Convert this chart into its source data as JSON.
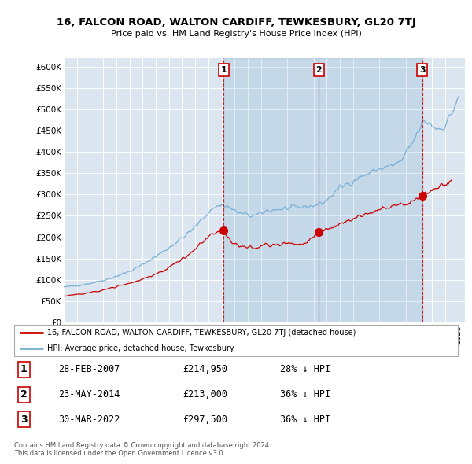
{
  "title": "16, FALCON ROAD, WALTON CARDIFF, TEWKESBURY, GL20 7TJ",
  "subtitle": "Price paid vs. HM Land Registry's House Price Index (HPI)",
  "ylabel_ticks": [
    0,
    50000,
    100000,
    150000,
    200000,
    250000,
    300000,
    350000,
    400000,
    450000,
    500000,
    550000,
    600000
  ],
  "ylabel_labels": [
    "£0",
    "£50K",
    "£100K",
    "£150K",
    "£200K",
    "£250K",
    "£300K",
    "£350K",
    "£400K",
    "£450K",
    "£500K",
    "£550K",
    "£600K"
  ],
  "ylim": [
    0,
    620000
  ],
  "xlim_start": 1995.0,
  "xlim_end": 2025.5,
  "hpi_color": "#7ab0d4",
  "price_color": "#cc0000",
  "background_color": "#dce6f1",
  "plot_bg_color": "#dce6f1",
  "grid_color": "#ffffff",
  "sale_dates": [
    2007.17,
    2014.4,
    2022.25
  ],
  "sale_prices": [
    214950,
    213000,
    297500
  ],
  "sale_labels": [
    "1",
    "2",
    "3"
  ],
  "legend_label_price": "16, FALCON ROAD, WALTON CARDIFF, TEWKESBURY, GL20 7TJ (detached house)",
  "legend_label_hpi": "HPI: Average price, detached house, Tewkesbury",
  "table_rows": [
    [
      "1",
      "28-FEB-2007",
      "£214,950",
      "28% ↓ HPI"
    ],
    [
      "2",
      "23-MAY-2014",
      "£213,000",
      "36% ↓ HPI"
    ],
    [
      "3",
      "30-MAR-2022",
      "£297,500",
      "36% ↓ HPI"
    ]
  ],
  "footnote": "Contains HM Land Registry data © Crown copyright and database right 2024.\nThis data is licensed under the Open Government Licence v3.0.",
  "hpi_anchor_years": [
    1995.0,
    1997.0,
    2000.0,
    2002.0,
    2004.5,
    2007.0,
    2008.5,
    2009.5,
    2010.5,
    2013.0,
    2014.5,
    2016.0,
    2017.5,
    2019.0,
    2020.5,
    2021.5,
    2022.5,
    2023.5,
    2025.0
  ],
  "hpi_anchor_vals": [
    83000,
    92000,
    120000,
    155000,
    210000,
    275000,
    255000,
    250000,
    262000,
    270000,
    278000,
    315000,
    340000,
    360000,
    375000,
    420000,
    470000,
    455000,
    530000
  ],
  "price_anchor_years": [
    1995.0,
    1997.0,
    2000.0,
    2002.5,
    2004.5,
    2007.0,
    2008.0,
    2009.5,
    2010.5,
    2013.0,
    2014.5,
    2016.0,
    2017.5,
    2019.5,
    2020.5,
    2021.5,
    2022.25,
    2023.5,
    2024.5
  ],
  "price_anchor_vals": [
    62000,
    70000,
    92000,
    120000,
    160000,
    214950,
    185000,
    175000,
    182000,
    185000,
    213000,
    230000,
    248000,
    268000,
    275000,
    285000,
    297500,
    315000,
    335000
  ]
}
